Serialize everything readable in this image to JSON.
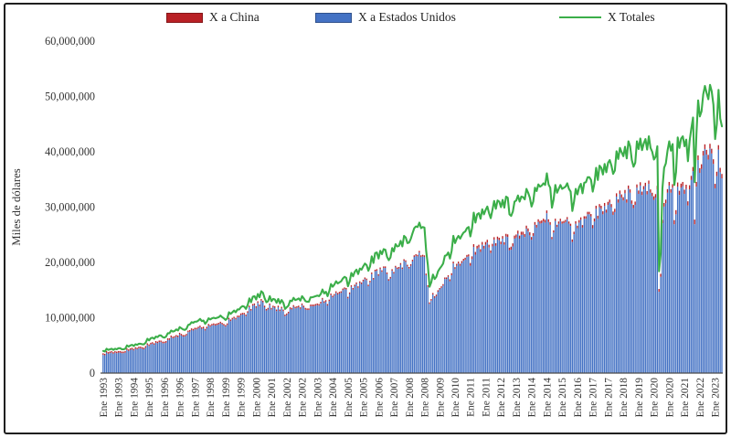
{
  "figure": {
    "background": "#ffffff",
    "border_color": "#1f1f1f"
  },
  "legend": {
    "items": [
      {
        "label": "X a China",
        "marker": "bar",
        "color": "#b92025"
      },
      {
        "label": "X a Estados Unidos",
        "marker": "bar",
        "color": "#4472c4"
      },
      {
        "label": "X Totales",
        "marker": "line",
        "color": "#3bae49"
      }
    ]
  },
  "chart_data": {
    "type": "bar",
    "subtype": "stacked-columns-with-line-overlay",
    "title": "",
    "xlabel": "",
    "ylabel": "Miles de dólares",
    "ylim": [
      0,
      60000000
    ],
    "grid": false,
    "legend_position": "top",
    "frequency": "monthly",
    "x_start": "Ene 1993",
    "x_end": "May 2023",
    "value_unit": "millones de miles de dólares (axis shows miles de dólares)",
    "y_tick_labels": [
      "0",
      "10,000,000",
      "20,000,000",
      "30,000,000",
      "40,000,000",
      "50,000,000",
      "60,000,000"
    ],
    "x_tick_every_months": 9,
    "x_tick_labels": [
      "Ene 1993",
      "Ene 1993",
      "Ene 1994",
      "Ene 1995",
      "Ene 1996",
      "Ene 1996",
      "Ene 1997",
      "Ene 1998",
      "Ene 1999",
      "Ene 1999",
      "Ene 2000",
      "Ene 2001",
      "Ene 2002",
      "Ene 2002",
      "Ene 2003",
      "Ene 2004",
      "Ene 2005",
      "Ene 2005",
      "Ene 2006",
      "Ene 2007",
      "Ene 2008",
      "Ene 2008",
      "Ene 2009",
      "Ene 2010",
      "Ene 2011",
      "Ene 2011",
      "Ene 2012",
      "Ene 2013",
      "Ene 2014",
      "Ene 2014",
      "Ene 2015",
      "Ene 2016",
      "Ene 2017",
      "Ene 2017",
      "Ene 2018",
      "Ene 2019",
      "Ene 2020",
      "Ene 2020",
      "Ene 2021",
      "Ene 2022",
      "Ene 2023"
    ],
    "series": [
      {
        "name": "X a China",
        "type": "bar",
        "stack": "exports",
        "color": "#b92025",
        "values": [
          0.04,
          0.04,
          0.04,
          0.04,
          0.04,
          0.04,
          0.04,
          0.04,
          0.04,
          0.04,
          0.04,
          0.04,
          0.04,
          0.04,
          0.04,
          0.04,
          0.04,
          0.04,
          0.04,
          0.04,
          0.04,
          0.04,
          0.04,
          0.04,
          0.03,
          0.03,
          0.03,
          0.03,
          0.03,
          0.03,
          0.03,
          0.03,
          0.03,
          0.03,
          0.03,
          0.03,
          0.03,
          0.03,
          0.03,
          0.03,
          0.03,
          0.03,
          0.03,
          0.03,
          0.03,
          0.03,
          0.03,
          0.03,
          0.04,
          0.04,
          0.04,
          0.04,
          0.04,
          0.04,
          0.04,
          0.04,
          0.04,
          0.04,
          0.04,
          0.04,
          0.04,
          0.04,
          0.04,
          0.04,
          0.04,
          0.04,
          0.04,
          0.04,
          0.04,
          0.04,
          0.04,
          0.04,
          0.05,
          0.05,
          0.05,
          0.05,
          0.05,
          0.05,
          0.05,
          0.05,
          0.05,
          0.05,
          0.05,
          0.05,
          0.05,
          0.05,
          0.05,
          0.05,
          0.05,
          0.05,
          0.05,
          0.05,
          0.05,
          0.05,
          0.05,
          0.05,
          0.04,
          0.04,
          0.04,
          0.04,
          0.04,
          0.04,
          0.04,
          0.04,
          0.04,
          0.04,
          0.04,
          0.04,
          0.06,
          0.06,
          0.06,
          0.06,
          0.06,
          0.06,
          0.06,
          0.06,
          0.06,
          0.06,
          0.06,
          0.06,
          0.08,
          0.08,
          0.08,
          0.08,
          0.08,
          0.08,
          0.08,
          0.08,
          0.08,
          0.08,
          0.08,
          0.08,
          0.09,
          0.09,
          0.09,
          0.09,
          0.09,
          0.09,
          0.09,
          0.09,
          0.09,
          0.09,
          0.09,
          0.09,
          0.09,
          0.09,
          0.09,
          0.09,
          0.09,
          0.09,
          0.09,
          0.09,
          0.09,
          0.09,
          0.09,
          0.09,
          0.14,
          0.14,
          0.14,
          0.14,
          0.14,
          0.14,
          0.14,
          0.14,
          0.14,
          0.14,
          0.14,
          0.14,
          0.16,
          0.16,
          0.16,
          0.16,
          0.16,
          0.16,
          0.16,
          0.16,
          0.16,
          0.16,
          0.16,
          0.16,
          0.18,
          0.18,
          0.18,
          0.18,
          0.18,
          0.18,
          0.18,
          0.18,
          0.18,
          0.18,
          0.18,
          0.18,
          0.19,
          0.19,
          0.19,
          0.19,
          0.19,
          0.19,
          0.19,
          0.19,
          0.19,
          0.19,
          0.19,
          0.19,
          0.35,
          0.35,
          0.35,
          0.35,
          0.35,
          0.35,
          0.35,
          0.35,
          0.35,
          0.35,
          0.35,
          0.35,
          0.5,
          0.5,
          0.5,
          0.5,
          0.5,
          0.5,
          0.5,
          0.5,
          0.5,
          0.5,
          0.5,
          0.5,
          0.47,
          0.47,
          0.47,
          0.47,
          0.47,
          0.47,
          0.47,
          0.47,
          0.47,
          0.47,
          0.47,
          0.47,
          0.55,
          0.55,
          0.55,
          0.55,
          0.55,
          0.55,
          0.55,
          0.55,
          0.55,
          0.55,
          0.55,
          0.55,
          0.5,
          0.5,
          0.5,
          0.5,
          0.5,
          0.5,
          0.5,
          0.5,
          0.5,
          0.5,
          0.5,
          0.5,
          0.4,
          0.4,
          0.4,
          0.4,
          0.4,
          0.4,
          0.4,
          0.4,
          0.4,
          0.4,
          0.4,
          0.4,
          0.45,
          0.45,
          0.45,
          0.45,
          0.45,
          0.45,
          0.45,
          0.45,
          0.45,
          0.45,
          0.45,
          0.45,
          0.55,
          0.55,
          0.55,
          0.55,
          0.55,
          0.55,
          0.55,
          0.55,
          0.55,
          0.55,
          0.55,
          0.55,
          0.6,
          0.6,
          0.6,
          0.6,
          0.6,
          0.6,
          0.6,
          0.6,
          0.6,
          0.6,
          0.6,
          0.6,
          0.6,
          0.6,
          0.6,
          0.6,
          0.6,
          0.6,
          0.6,
          0.6,
          0.6,
          0.6,
          0.6,
          0.6,
          0.65,
          0.65,
          0.65,
          0.5,
          0.55,
          0.6,
          0.65,
          0.65,
          0.65,
          0.65,
          0.65,
          0.65,
          0.75,
          0.75,
          0.75,
          0.75,
          0.75,
          0.75,
          0.75,
          0.75,
          0.75,
          0.75,
          0.75,
          0.75,
          0.85,
          0.85,
          0.85,
          0.85,
          0.85,
          0.85,
          0.85,
          0.85,
          0.85,
          0.85,
          0.85,
          0.85,
          0.8,
          0.8,
          0.8,
          0.8,
          0.8
        ]
      },
      {
        "name": "X a Estados Unidos",
        "type": "bar",
        "stack": "exports",
        "color": "#4472c4",
        "values": [
          3.3,
          3.2,
          3.7,
          3.5,
          3.6,
          3.7,
          3.5,
          3.7,
          3.6,
          3.7,
          3.7,
          3.6,
          3.6,
          3.7,
          4.2,
          4.0,
          4.2,
          4.3,
          4.1,
          4.4,
          4.3,
          4.5,
          4.5,
          4.4,
          4.3,
          4.6,
          5.1,
          4.9,
          5.2,
          5.3,
          5.1,
          5.5,
          5.4,
          5.6,
          5.6,
          5.4,
          5.4,
          5.5,
          6.0,
          6.0,
          6.5,
          6.3,
          6.4,
          6.6,
          6.5,
          7.0,
          6.8,
          6.6,
          6.6,
          6.8,
          7.4,
          7.5,
          7.8,
          7.7,
          7.9,
          7.9,
          8.1,
          8.3,
          8.0,
          8.1,
          7.7,
          8.1,
          8.6,
          8.4,
          8.6,
          8.7,
          8.6,
          8.7,
          8.8,
          9.0,
          8.8,
          8.6,
          8.4,
          8.7,
          9.7,
          9.4,
          9.7,
          9.9,
          9.7,
          10.1,
          10.1,
          10.5,
          10.6,
          10.6,
          10.3,
          10.9,
          11.9,
          11.3,
          12.2,
          12.3,
          11.8,
          12.7,
          12.1,
          13.1,
          12.8,
          11.9,
          11.3,
          11.5,
          12.3,
          11.5,
          11.9,
          11.8,
          11.2,
          11.9,
          11.2,
          11.7,
          11.2,
          10.3,
          10.5,
          10.8,
          11.6,
          11.5,
          12.0,
          11.7,
          11.8,
          11.9,
          11.6,
          12.3,
          11.9,
          11.5,
          11.4,
          11.4,
          12.1,
          12.1,
          12.1,
          12.2,
          12.3,
          12.2,
          12.6,
          13.3,
          12.7,
          12.9,
          12.2,
          13.0,
          14.1,
          13.7,
          14.0,
          14.5,
          14.2,
          14.4,
          14.5,
          15.0,
          15.2,
          15.1,
          13.5,
          14.3,
          15.6,
          15.1,
          15.7,
          16.1,
          15.4,
          16.3,
          16.1,
          16.6,
          17.0,
          16.8,
          15.7,
          16.4,
          17.9,
          16.9,
          18.4,
          18.5,
          17.6,
          18.8,
          18.3,
          19.0,
          19.0,
          17.9,
          16.7,
          17.1,
          18.5,
          18.0,
          19.1,
          18.8,
          18.9,
          19.6,
          18.8,
          20.3,
          20.1,
          19.3,
          18.9,
          19.4,
          20.2,
          21.0,
          21.2,
          21.1,
          21.8,
          21.0,
          21.1,
          21.0,
          17.7,
          15.6,
          12.5,
          13.1,
          14.2,
          13.6,
          13.9,
          14.7,
          15.1,
          15.4,
          15.8,
          17.0,
          17.0,
          17.4,
          16.6,
          17.7,
          19.8,
          18.8,
          19.4,
          19.8,
          19.4,
          19.9,
          20.3,
          20.5,
          21.0,
          21.1,
          19.4,
          20.6,
          22.8,
          21.4,
          22.5,
          22.7,
          21.9,
          23.2,
          22.5,
          23.2,
          23.6,
          22.7,
          21.7,
          22.9,
          24.1,
          23.0,
          24.2,
          24.0,
          23.3,
          24.3,
          23.2,
          24.7,
          24.6,
          22.2,
          22.3,
          22.9,
          24.3,
          24.5,
          25.2,
          24.3,
          25.0,
          25.0,
          24.6,
          26.1,
          25.6,
          24.9,
          24.1,
          24.8,
          26.8,
          26.3,
          27.3,
          27.0,
          27.1,
          27.4,
          27.2,
          28.9,
          27.3,
          26.8,
          24.2,
          25.4,
          27.5,
          26.4,
          27.0,
          27.5,
          27.0,
          27.1,
          27.3,
          27.8,
          27.0,
          26.6,
          23.7,
          25.1,
          27.0,
          26.2,
          27.2,
          27.7,
          26.3,
          27.9,
          27.9,
          28.7,
          28.7,
          28.3,
          26.2,
          27.4,
          29.7,
          27.9,
          30.0,
          29.7,
          28.7,
          30.2,
          29.0,
          30.4,
          30.8,
          30.0,
          28.6,
          29.1,
          31.9,
          30.8,
          32.4,
          31.7,
          31.2,
          32.5,
          30.8,
          33.3,
          32.6,
          30.6,
          29.8,
          30.4,
          33.5,
          32.4,
          33.9,
          32.2,
          33.2,
          33.8,
          32.3,
          34.2,
          32.6,
          32.0,
          31.3,
          31.7,
          33.2,
          14.7,
          17.4,
          27.1,
          30.1,
          30.7,
          32.6,
          33.9,
          32.6,
          33.5,
          26.9,
          28.7,
          33.7,
          32.2,
          33.5,
          33.8,
          32.4,
          33.3,
          30.3,
          33.2,
          34.9,
          36.5,
          26.9,
          33.7,
          38.5,
          36.2,
          36.9,
          39.3,
          40.5,
          39.5,
          38.6,
          40.6,
          39.7,
          37.8,
          33.4,
          35.6,
          40.4,
          36.3,
          35.2
        ]
      },
      {
        "name": "X Totales",
        "type": "line",
        "color": "#3bae49",
        "values": [
          4.0,
          3.9,
          4.4,
          4.2,
          4.3,
          4.4,
          4.2,
          4.4,
          4.3,
          4.5,
          4.5,
          4.3,
          4.3,
          4.4,
          5.0,
          4.8,
          5.0,
          5.1,
          4.9,
          5.2,
          5.1,
          5.3,
          5.3,
          5.2,
          5.2,
          5.5,
          6.2,
          5.9,
          6.3,
          6.4,
          6.2,
          6.6,
          6.5,
          6.8,
          6.8,
          6.5,
          6.4,
          6.6,
          7.2,
          7.2,
          7.7,
          7.5,
          7.6,
          7.9,
          7.7,
          8.3,
          8.1,
          7.9,
          7.8,
          8.0,
          8.7,
          8.8,
          9.2,
          9.1,
          9.3,
          9.3,
          9.5,
          9.8,
          9.4,
          9.5,
          8.9,
          9.3,
          9.9,
          9.7,
          9.9,
          10.0,
          9.9,
          10.0,
          10.1,
          10.4,
          10.1,
          9.9,
          9.6,
          9.9,
          11.0,
          10.7,
          11.0,
          11.3,
          11.0,
          11.5,
          11.5,
          11.9,
          12.1,
          12.0,
          11.6,
          12.3,
          13.5,
          12.8,
          13.8,
          13.9,
          13.3,
          14.3,
          13.7,
          14.8,
          14.5,
          13.5,
          12.8,
          13.0,
          13.9,
          13.0,
          13.4,
          13.3,
          12.7,
          13.4,
          12.6,
          13.2,
          12.7,
          11.6,
          11.9,
          12.2,
          13.1,
          13.0,
          13.6,
          13.2,
          13.3,
          13.5,
          13.1,
          13.9,
          13.5,
          13.0,
          12.9,
          12.9,
          13.7,
          13.7,
          13.8,
          13.9,
          14.0,
          13.9,
          14.3,
          15.1,
          14.4,
          14.7,
          13.9,
          14.8,
          16.1,
          15.6,
          16.0,
          16.6,
          16.2,
          16.4,
          16.6,
          17.1,
          17.4,
          17.2,
          15.7,
          16.6,
          18.1,
          17.5,
          18.3,
          18.7,
          17.9,
          18.9,
          18.7,
          19.3,
          19.8,
          19.5,
          18.5,
          19.3,
          21.1,
          19.9,
          21.7,
          21.8,
          20.7,
          22.1,
          21.5,
          22.4,
          22.3,
          21.0,
          20.4,
          20.9,
          22.6,
          22.0,
          23.3,
          22.9,
          23.0,
          23.9,
          22.9,
          24.8,
          24.5,
          23.5,
          23.6,
          24.3,
          25.3,
          26.2,
          26.5,
          26.4,
          27.2,
          26.2,
          26.4,
          26.3,
          22.1,
          19.5,
          15.6,
          16.4,
          17.8,
          17.0,
          17.4,
          18.4,
          18.9,
          19.3,
          19.8,
          21.2,
          21.3,
          21.8,
          20.7,
          22.1,
          24.8,
          23.5,
          24.3,
          24.8,
          24.3,
          24.9,
          25.4,
          25.6,
          26.2,
          26.4,
          24.7,
          26.2,
          29.0,
          27.2,
          28.7,
          28.9,
          27.9,
          29.6,
          28.7,
          29.5,
          30.1,
          28.9,
          28.0,
          29.5,
          31.1,
          29.7,
          31.2,
          31.0,
          30.0,
          31.3,
          29.9,
          31.9,
          31.7,
          28.7,
          28.4,
          29.2,
          31.0,
          31.2,
          32.1,
          31.0,
          31.9,
          31.8,
          31.4,
          33.3,
          32.6,
          31.7,
          30.1,
          31.0,
          33.5,
          32.9,
          34.1,
          33.7,
          33.9,
          34.3,
          34.0,
          36.1,
          34.1,
          33.5,
          29.9,
          31.4,
          34.0,
          32.6,
          33.3,
          34.0,
          33.3,
          33.5,
          33.7,
          34.3,
          33.3,
          32.8,
          29.3,
          31.0,
          33.3,
          32.3,
          33.6,
          34.2,
          32.5,
          34.4,
          34.5,
          35.4,
          35.4,
          34.9,
          32.8,
          34.3,
          37.1,
          34.9,
          37.5,
          37.1,
          35.9,
          37.8,
          36.3,
          38.0,
          38.5,
          37.5,
          36.0,
          36.6,
          40.1,
          38.7,
          40.7,
          39.9,
          39.2,
          40.9,
          38.8,
          41.9,
          41.0,
          38.5,
          37.3,
          38.0,
          41.9,
          40.5,
          42.4,
          40.3,
          41.5,
          42.3,
          40.4,
          42.8,
          40.7,
          40.0,
          38.6,
          39.1,
          41.0,
          18.4,
          21.7,
          33.4,
          37.1,
          37.9,
          40.2,
          41.9,
          40.2,
          41.4,
          34.0,
          36.3,
          42.6,
          40.7,
          42.4,
          42.8,
          41.0,
          42.2,
          38.3,
          42.0,
          44.2,
          46.2,
          34.5,
          43.2,
          49.3,
          46.4,
          47.3,
          50.4,
          51.9,
          50.6,
          49.5,
          52.1,
          50.9,
          48.5,
          42.3,
          45.0,
          51.2,
          46.0,
          44.6
        ]
      }
    ]
  }
}
